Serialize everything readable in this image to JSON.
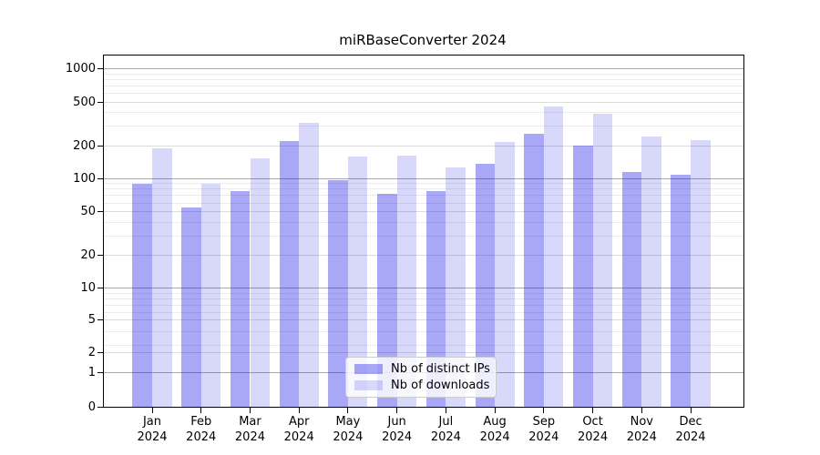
{
  "chart_data": {
    "type": "bar",
    "title": "miRBaseConverter 2024",
    "x_tick_months": [
      "Jan",
      "Feb",
      "Mar",
      "Apr",
      "May",
      "Jun",
      "Jul",
      "Aug",
      "Sep",
      "Oct",
      "Nov",
      "Dec"
    ],
    "x_tick_year": "2024",
    "series": [
      {
        "name": "Nb of distinct IPs",
        "color": "rgba(20,20,230,0.37)",
        "values": [
          90,
          55,
          77,
          220,
          97,
          73,
          77,
          136,
          258,
          200,
          114,
          108
        ]
      },
      {
        "name": "Nb of downloads",
        "color": "rgba(20,20,230,0.165)",
        "values": [
          190,
          89,
          154,
          325,
          158,
          163,
          126,
          215,
          455,
          392,
          244,
          224
        ]
      }
    ],
    "yscale": "symlog",
    "yticks": [
      {
        "label": "0",
        "value": 0
      },
      {
        "label": "1",
        "value": 1
      },
      {
        "label": "2",
        "value": 2
      },
      {
        "label": "5",
        "value": 5
      },
      {
        "label": "10",
        "value": 10
      },
      {
        "label": "20",
        "value": 20
      },
      {
        "label": "50",
        "value": 50
      },
      {
        "label": "100",
        "value": 100
      },
      {
        "label": "200",
        "value": 200
      },
      {
        "label": "500",
        "value": 500
      },
      {
        "label": "1000",
        "value": 1000
      }
    ],
    "ylim": [
      0,
      1250
    ],
    "grid": "both",
    "legend_position": "lower center"
  }
}
